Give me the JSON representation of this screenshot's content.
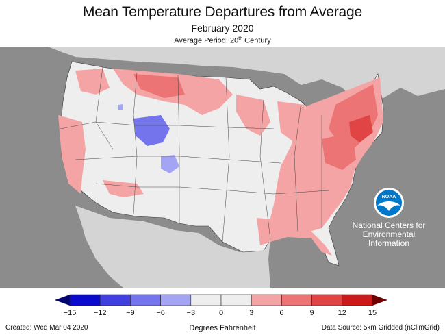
{
  "header": {
    "title": "Mean Temperature Departures from Average",
    "subtitle": "February 2020",
    "period_prefix": "Average Period: 20",
    "period_sup": "th",
    "period_suffix": " Century"
  },
  "logo": {
    "text": "NOAA",
    "org_lines": [
      "National Centers for",
      "Environmental",
      "Information"
    ]
  },
  "legend": {
    "title": "Degrees Fahrenheit",
    "ticks": [
      "−15",
      "−12",
      "−9",
      "−6",
      "−3",
      "0",
      "3",
      "6",
      "9",
      "12",
      "15"
    ],
    "colors": [
      "#0a0acc",
      "#4040e0",
      "#7474ec",
      "#a4a4f4",
      "#eeeeee",
      "#eeeeee",
      "#f4a4a4",
      "#ec7474",
      "#e04444",
      "#cc1a1a"
    ],
    "min_color": "#050570",
    "max_color": "#700000"
  },
  "footer": {
    "created": "Created: Wed Mar 04 2020",
    "source": "Data Source: 5km Gridded (nClimGrid)"
  },
  "colors": {
    "background_gray": "#8c8c8c",
    "land_neutral": "#eeeeee",
    "warm_light": "#f4a4a4",
    "warm_mid": "#ec7474",
    "warm_strong": "#e04444",
    "cool_light": "#a4a4f4",
    "cool_mid": "#7474ec",
    "noaa_blue": "#0077c8"
  }
}
